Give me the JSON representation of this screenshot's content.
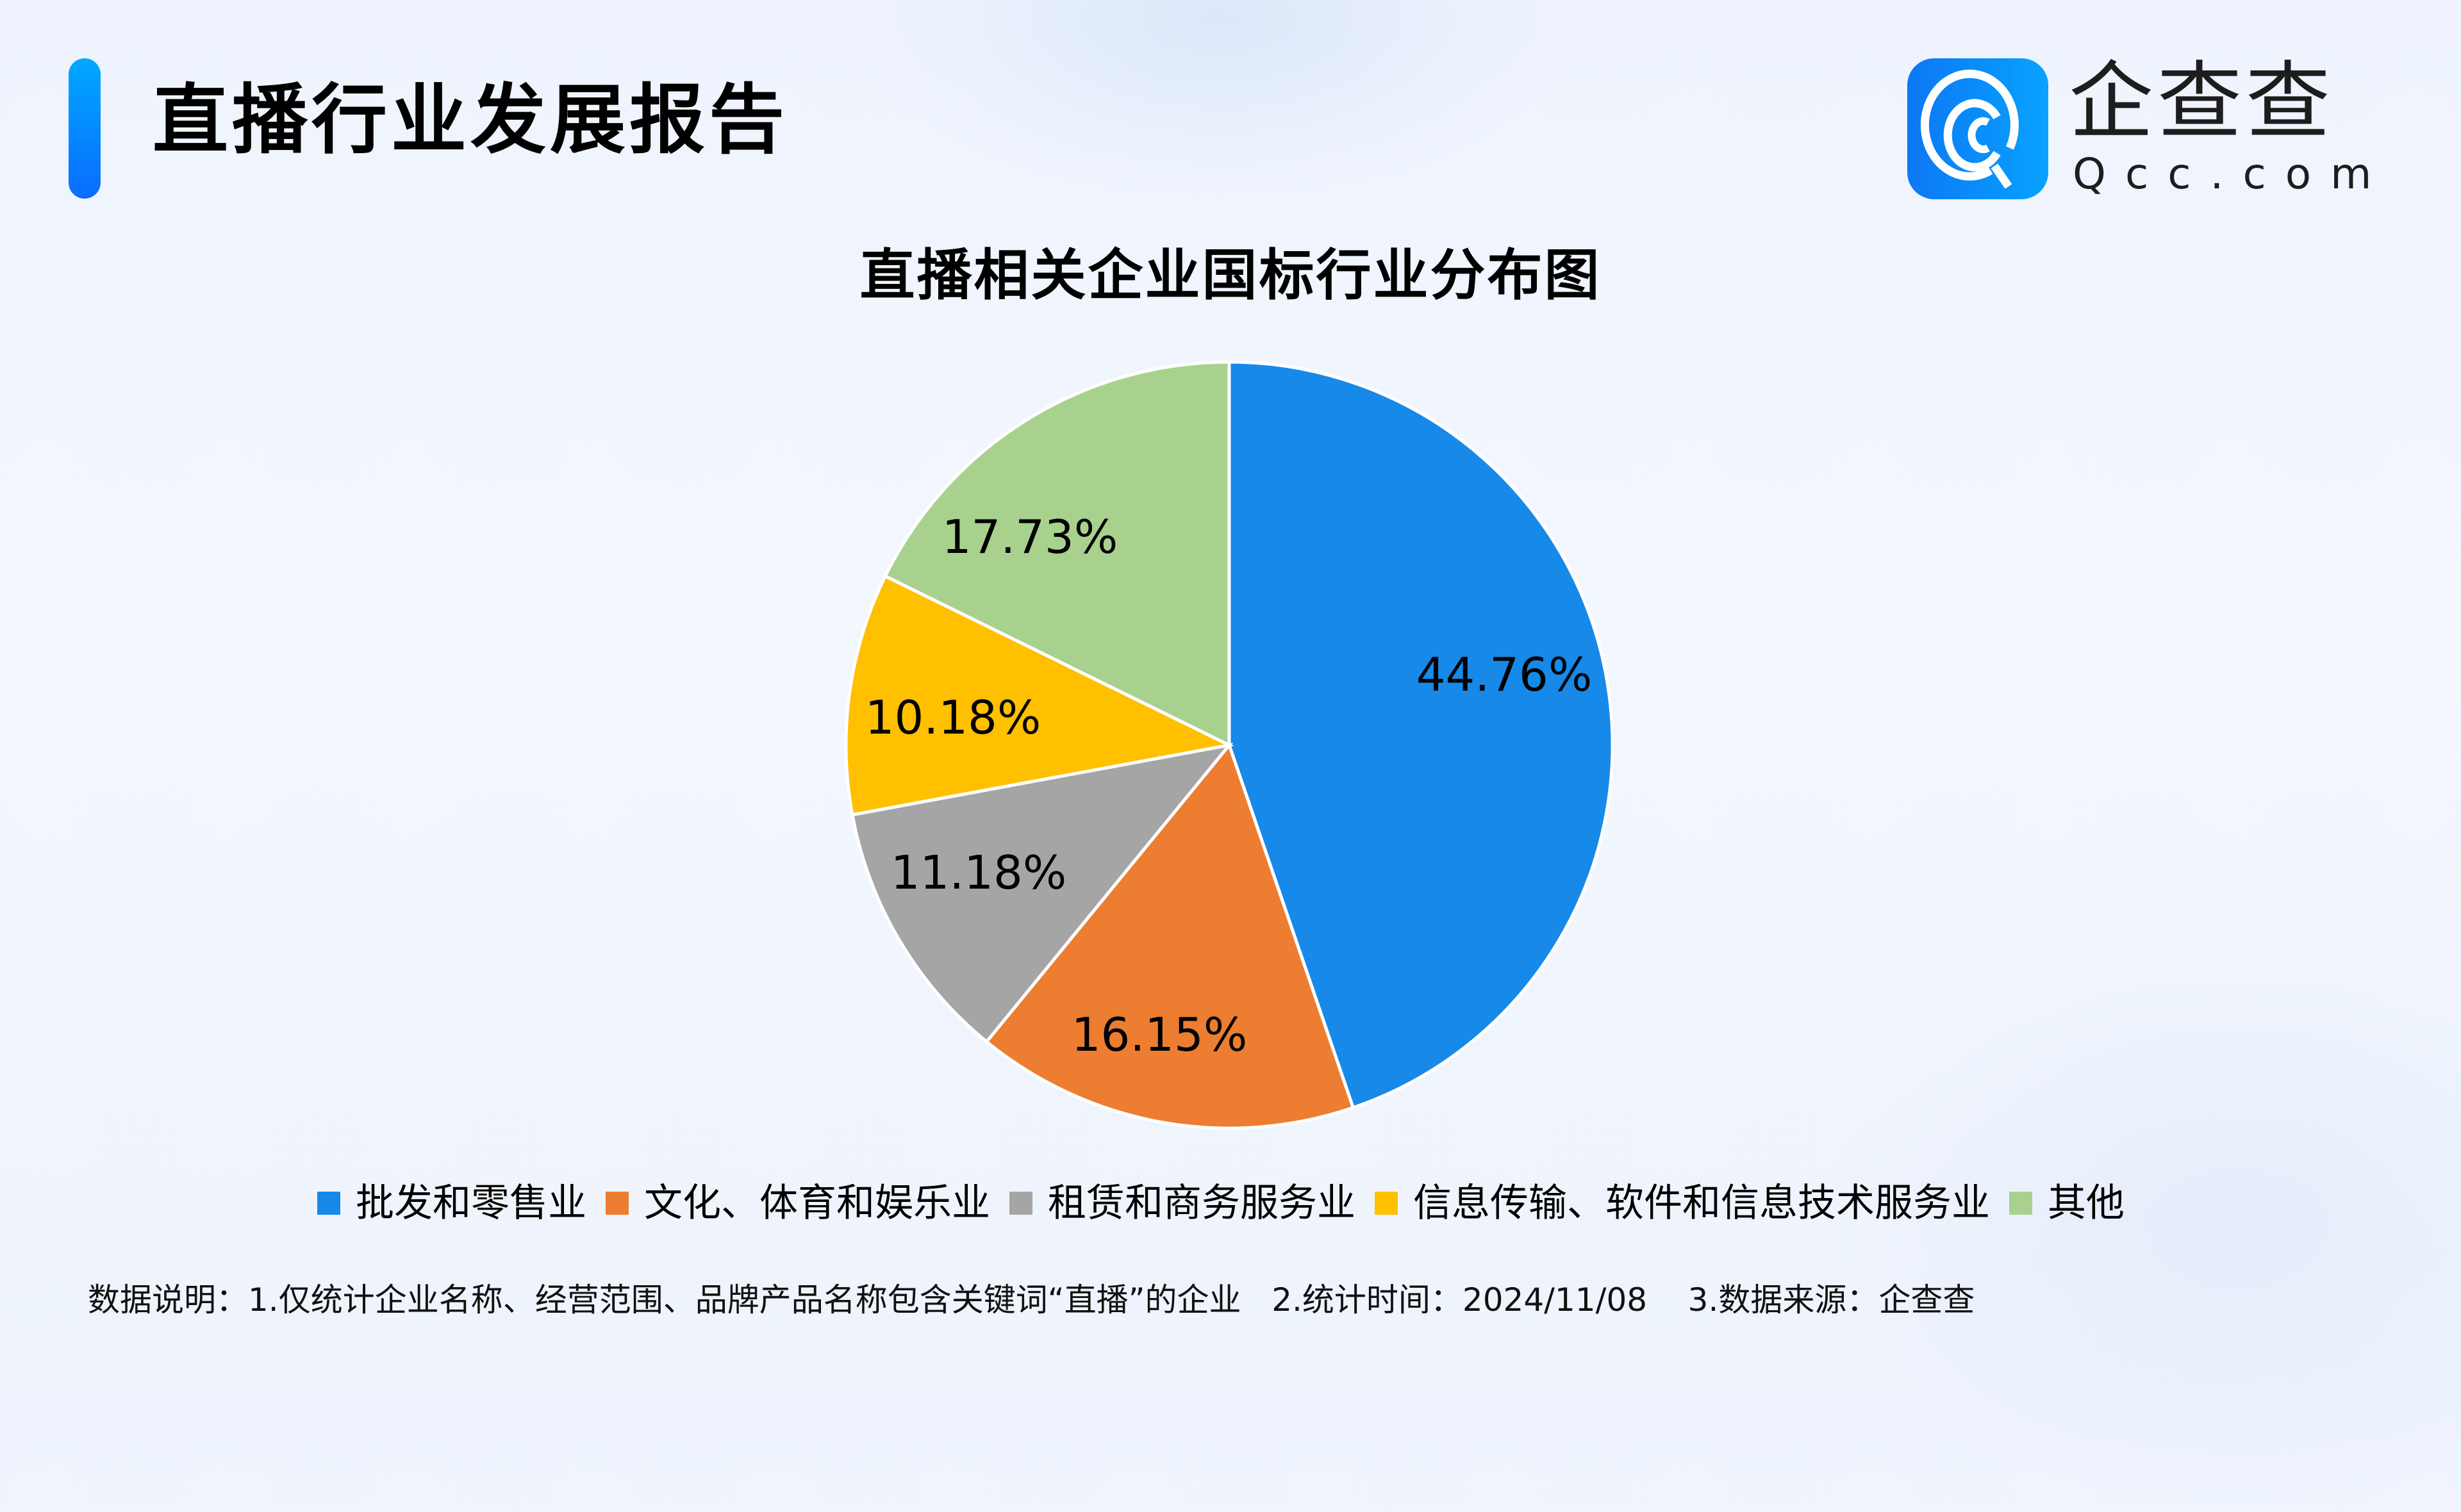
{
  "header": {
    "title": "直播行业发展报告",
    "accent_color_top": "#00a8ff",
    "accent_color_bottom": "#0a6cff"
  },
  "logo": {
    "icon": "qcc-logo-icon",
    "name_cn": "企查查",
    "name_en": "Qcc.com",
    "badge_color": "#0c78f4"
  },
  "chart": {
    "title": "直播相关企业国标行业分布图"
  },
  "legend": {
    "items": [
      {
        "label": "批发和零售业",
        "color": "#1689e9"
      },
      {
        "label": "文化、体育和娱乐业",
        "color": "#ed7d31"
      },
      {
        "label": "租赁和商务服务业",
        "color": "#a5a5a5"
      },
      {
        "label": "信息传输、软件和信息技术服务业",
        "color": "#ffc000"
      },
      {
        "label": "其他",
        "color": "#a9d18e"
      }
    ]
  },
  "labels": {
    "slice0": "44.76%",
    "slice1": "16.15%",
    "slice2": "11.18%",
    "slice3": "10.18%",
    "slice4": "17.73%"
  },
  "footnote": {
    "text": "数据说明：1.仅统计企业名称、经营范围、品牌产品名称包含关键词“直播”的企业   2.统计时间：2024/11/08    3.数据来源：企查查"
  },
  "chart_data": {
    "type": "pie",
    "title": "直播相关企业国标行业分布图",
    "categories": [
      "批发和零售业",
      "文化、体育和娱乐业",
      "租赁和商务服务业",
      "信息传输、软件和信息技术服务业",
      "其他"
    ],
    "values": [
      44.76,
      16.15,
      11.18,
      10.18,
      17.73
    ],
    "unit": "%",
    "colors": [
      "#1689e9",
      "#ed7d31",
      "#a5a5a5",
      "#ffc000",
      "#a9d18e"
    ],
    "start_angle": "12 o'clock",
    "direction": "clockwise",
    "data_labels": [
      "44.76%",
      "16.15%",
      "11.18%",
      "10.18%",
      "17.73%"
    ],
    "legend_position": "bottom"
  }
}
